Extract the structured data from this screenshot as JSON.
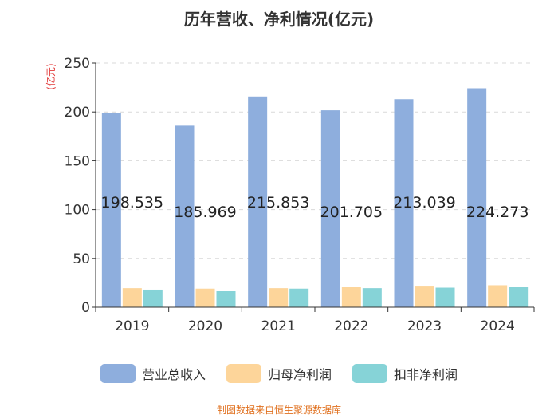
{
  "chart_data": {
    "type": "bar",
    "title": "历年营收、净利情况(亿元)",
    "ylabel": "(亿元)",
    "xlabel": "",
    "ylim": [
      0,
      250
    ],
    "yticks": [
      0,
      50,
      100,
      150,
      200,
      250
    ],
    "grid": true,
    "legend_position": "bottom",
    "categories": [
      "2019",
      "2020",
      "2021",
      "2022",
      "2023",
      "2024"
    ],
    "series": [
      {
        "name": "营业总收入",
        "color": "#8eaedd",
        "values": [
          198.535,
          185.969,
          215.853,
          201.705,
          213.039,
          224.273
        ],
        "data_labels": [
          "198.535",
          "185.969",
          "215.853",
          "201.705",
          "213.039",
          "224.273"
        ]
      },
      {
        "name": "归母净利润",
        "color": "#fdd59a",
        "values": [
          19.5,
          19.0,
          19.5,
          20.5,
          22.0,
          22.5
        ]
      },
      {
        "name": "扣非净利润",
        "color": "#86d3d7",
        "values": [
          18.0,
          16.5,
          19.0,
          19.5,
          20.0,
          20.5
        ]
      }
    ]
  },
  "source_note": "制图数据来自恒生聚源数据库"
}
